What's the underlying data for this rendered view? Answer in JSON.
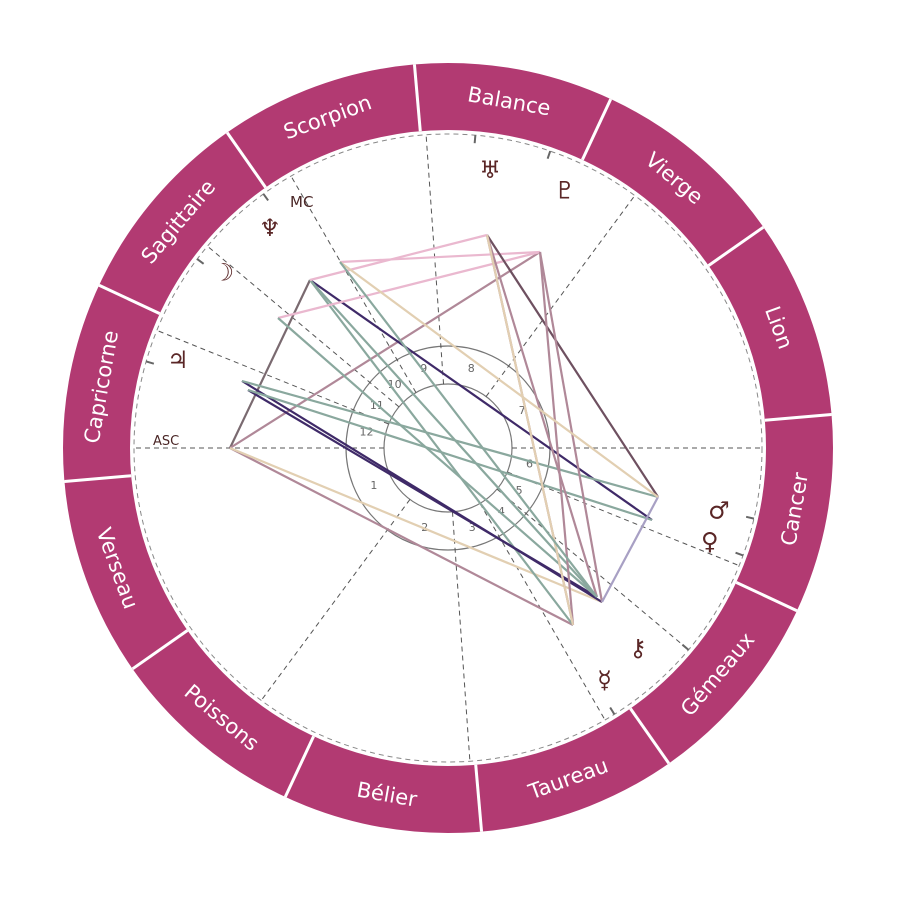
{
  "colors": {
    "ring": "#b23a72",
    "glyph": "#5a2626",
    "house_line": "#555555"
  },
  "signs": [
    {
      "name": "Cancer"
    },
    {
      "name": "Lion"
    },
    {
      "name": "Vierge"
    },
    {
      "name": "Balance"
    },
    {
      "name": "Scorpion"
    },
    {
      "name": "Sagittaire"
    },
    {
      "name": "Capricorne"
    },
    {
      "name": "Verseau"
    },
    {
      "name": "Poissons"
    },
    {
      "name": "Bélier"
    },
    {
      "name": "Taureau"
    },
    {
      "name": "Gémeaux"
    }
  ],
  "axes": {
    "asc": "ASC",
    "mc": "MC"
  },
  "houses": [
    "1",
    "2",
    "3",
    "4",
    "5",
    "6",
    "7",
    "8",
    "9",
    "10",
    "11",
    "12"
  ],
  "planets": [
    {
      "name": "uranus",
      "glyph": "♅"
    },
    {
      "name": "pluto",
      "glyph": "♇"
    },
    {
      "name": "neptune",
      "glyph": "♆"
    },
    {
      "name": "moon",
      "glyph": "☽"
    },
    {
      "name": "jupiter",
      "glyph": "♃"
    },
    {
      "name": "mars",
      "glyph": "♂"
    },
    {
      "name": "venus",
      "glyph": "♀"
    },
    {
      "name": "chiron",
      "glyph": "⚷"
    },
    {
      "name": "mercury",
      "glyph": "☿"
    }
  ],
  "aspect_colors": {
    "teal": "#8aa89e",
    "purple": "#3f2a68",
    "mauve": "#b08898",
    "tan": "#e2cfb2",
    "pink": "#eab8cf",
    "brown": "#6e5060",
    "lavender": "#a8a0c4",
    "gray": "#7a6a70"
  }
}
